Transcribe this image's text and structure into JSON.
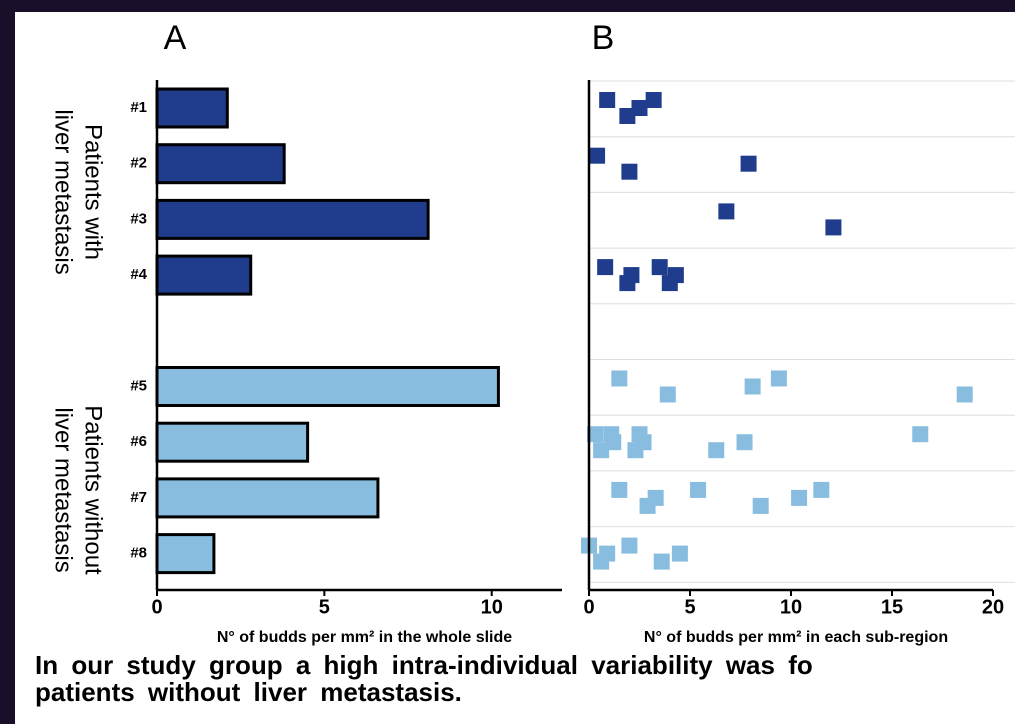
{
  "chart_data": [
    {
      "type": "bar",
      "orientation": "horizontal",
      "title": "A",
      "categories": [
        "#1",
        "#2",
        "#3",
        "#4",
        null,
        "#5",
        "#6",
        "#7",
        "#8"
      ],
      "values": [
        2.1,
        3.8,
        8.1,
        2.8,
        null,
        10.2,
        4.5,
        6.6,
        1.7
      ],
      "colors": [
        "#1f3d8c",
        "#1f3d8c",
        "#1f3d8c",
        "#1f3d8c",
        null,
        "#88bde0",
        "#88bde0",
        "#88bde0",
        "#88bde0"
      ],
      "xlim": [
        0,
        12.1
      ],
      "xticks": [
        0,
        5,
        10
      ],
      "xlabel": "N° of budds per mm² in the whole slide"
    },
    {
      "type": "strip",
      "title": "B",
      "rows": [
        {
          "color": "#1f3d8c",
          "values": [
            0.9,
            1.9,
            2.5,
            3.2
          ]
        },
        {
          "color": "#1f3d8c",
          "values": [
            0.4,
            2.0,
            7.9
          ]
        },
        {
          "color": "#1f3d8c",
          "values": [
            6.8,
            12.1
          ]
        },
        {
          "color": "#1f3d8c",
          "values": [
            0.8,
            1.9,
            2.1,
            3.5,
            4.0,
            4.3
          ]
        },
        null,
        {
          "color": "#88bde0",
          "values": [
            1.5,
            3.9,
            8.1,
            9.4,
            18.6
          ]
        },
        {
          "color": "#88bde0",
          "values": [
            0.3,
            0.6,
            1.2,
            1.1,
            2.3,
            2.7,
            2.5,
            6.3,
            7.7,
            16.4
          ]
        },
        {
          "color": "#88bde0",
          "values": [
            1.5,
            2.9,
            3.3,
            5.4,
            8.5,
            10.4,
            11.5
          ]
        },
        {
          "color": "#88bde0",
          "values": [
            0.0,
            0.6,
            0.9,
            2.0,
            3.6,
            4.5
          ]
        }
      ],
      "xlim": [
        0,
        20
      ],
      "xticks": [
        0,
        5,
        10,
        15,
        20
      ],
      "xlabel": "N° of budds per mm² in each sub-region"
    }
  ],
  "group_labels": [
    [
      "Patients with",
      "liver metastasis"
    ],
    [
      "Patients without",
      "liver metastasis"
    ]
  ],
  "caption": [
    "In our study group a high intra-individual variability was fo",
    "patients without liver metastasis."
  ]
}
